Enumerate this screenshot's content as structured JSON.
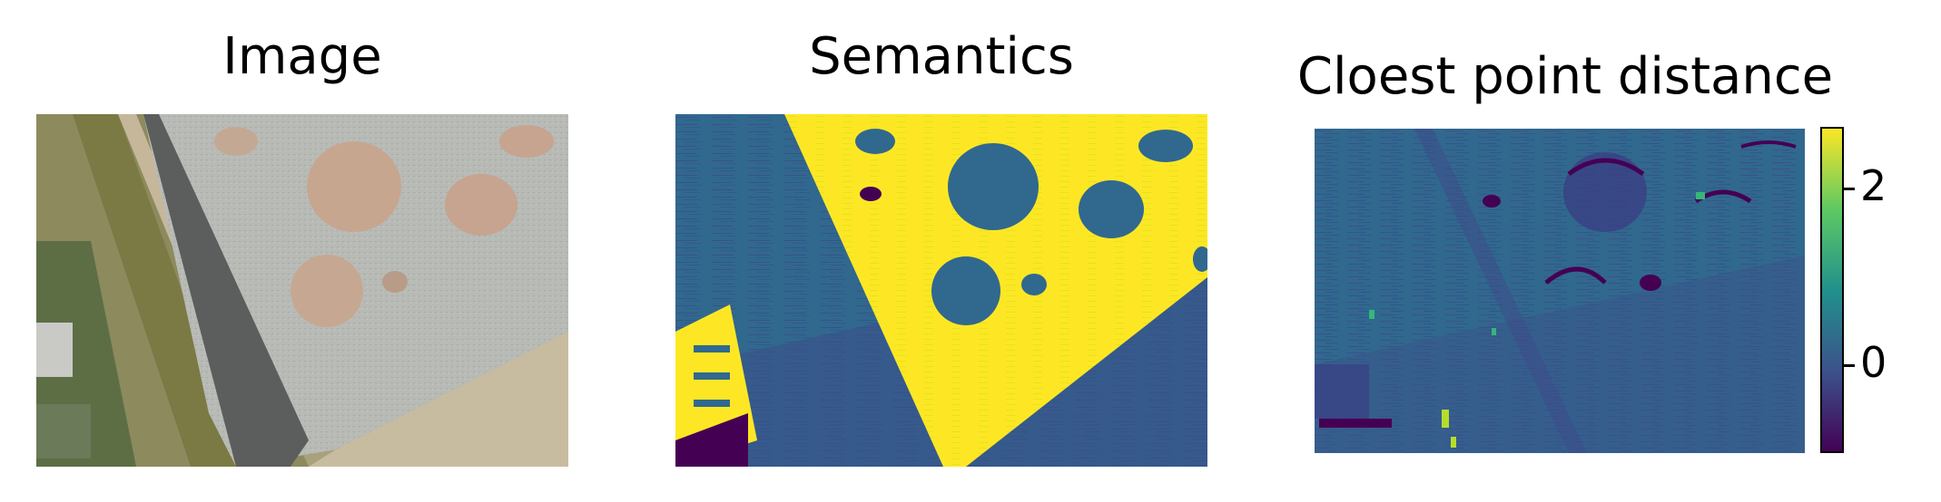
{
  "panels": [
    {
      "title": "Image"
    },
    {
      "title": "Semantics"
    },
    {
      "title": "Cloest point distance"
    }
  ],
  "colorbar": {
    "colormap": "viridis",
    "range": [
      -1,
      2.7
    ],
    "ticks": [
      "0",
      "2"
    ],
    "tick_values": [
      0,
      2
    ]
  },
  "colors": {
    "viridis_low": "#440154",
    "viridis_mid": "#31688e",
    "viridis_mid2": "#21918c",
    "viridis_high": "#fde725"
  }
}
